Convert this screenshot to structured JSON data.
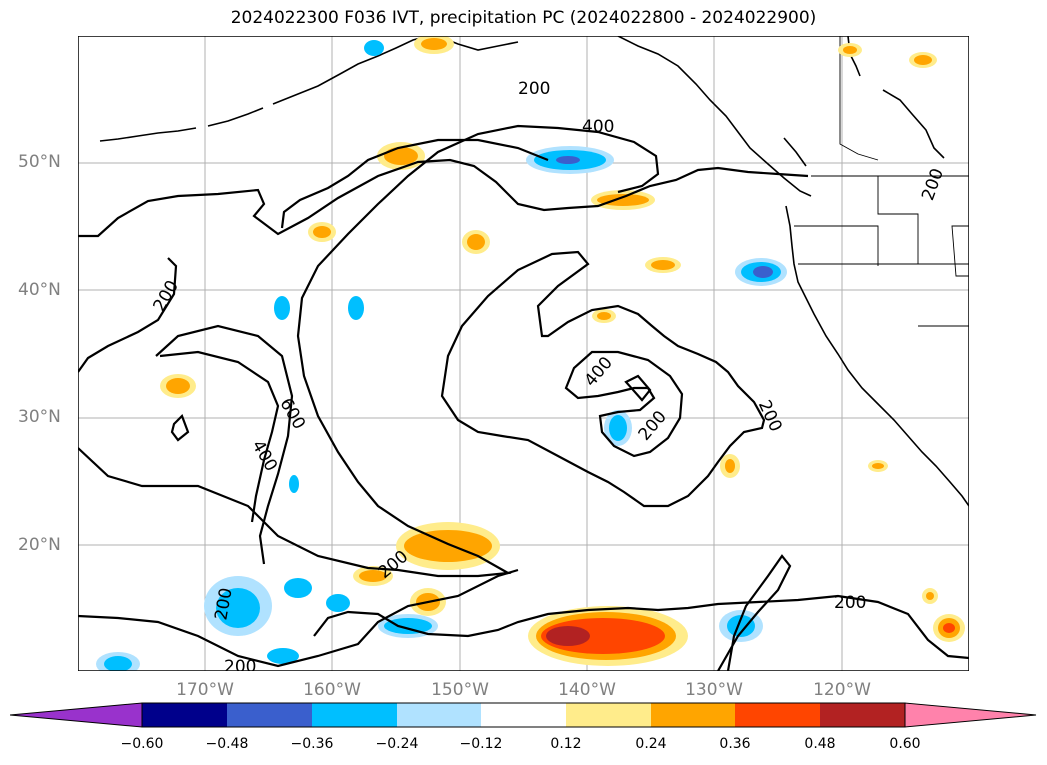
{
  "title": "2024022300 F036 IVT, precipitation PC (2024022800 - 2024022900)",
  "axes": {
    "lat_labels": [
      "50°N",
      "40°N",
      "30°N",
      "20°N"
    ],
    "lon_labels": [
      "170°W",
      "160°W",
      "150°W",
      "140°W",
      "130°W",
      "120°W"
    ],
    "grid": true
  },
  "contour_labels": [
    "200",
    "400",
    "200",
    "200",
    "600",
    "400",
    "400",
    "200",
    "200",
    "200",
    "200",
    "200",
    "200"
  ],
  "colorbar": {
    "ticks": [
      "−0.60",
      "−0.48",
      "−0.36",
      "−0.24",
      "−0.12",
      "0.12",
      "0.24",
      "0.36",
      "0.48",
      "0.60"
    ],
    "colors": [
      "#9932cc",
      "#00008b",
      "#3a5fcd",
      "#00bfff",
      "#b0e2ff",
      "#ffffff",
      "#ffec8b",
      "#ffa500",
      "#ff4500",
      "#b22222",
      "#ff82ab"
    ],
    "extend": "both"
  }
}
